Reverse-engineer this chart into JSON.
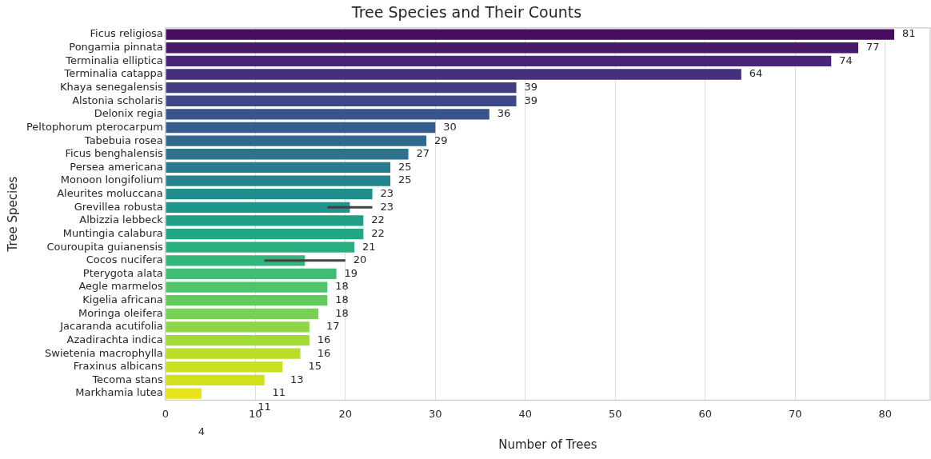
{
  "chart_data": {
    "type": "bar",
    "orientation": "horizontal",
    "title": "Tree Species and Their Counts",
    "xlabel": "Number of Trees",
    "ylabel": "Tree Species",
    "categories": [
      "Ficus religiosa",
      "Pongamia pinnata",
      "Terminalia elliptica",
      "Terminalia catappa",
      "Khaya senegalensis",
      "Alstonia scholaris",
      "Delonix regia",
      "Peltophorum pterocarpum",
      "Tabebuia rosea",
      "Ficus benghalensis",
      "Persea americana",
      "Monoon longifolium",
      "Aleurites moluccana",
      "Grevillea robusta",
      "Albizzia lebbeck",
      "Muntingia calabura",
      "Couroupita guianensis",
      "Cocos nucifera",
      "Pterygota alata",
      "Aegle marmelos",
      "Kigelia africana",
      "Moringa oleifera",
      "Jacaranda acutifolia",
      "Azadirachta indica",
      "Swietenia macrophylla",
      "Fraxinus albicans",
      "Tecoma stans",
      "Markhamia lutea"
    ],
    "values": [
      81,
      77,
      74,
      64,
      39,
      39,
      36,
      30,
      29,
      27,
      25,
      25,
      23,
      20.5,
      22,
      22,
      21,
      15.5,
      19,
      18,
      18,
      17,
      16,
      16,
      15,
      13,
      11,
      4
    ],
    "errors": [
      null,
      null,
      null,
      null,
      null,
      null,
      null,
      null,
      null,
      null,
      null,
      null,
      null,
      [
        18,
        23
      ],
      null,
      null,
      null,
      [
        11,
        20
      ],
      null,
      null,
      null,
      null,
      null,
      null,
      null,
      null,
      null,
      null
    ],
    "colors": [
      "#470d60",
      "#481a6c",
      "#482576",
      "#46307e",
      "#433d84",
      "#3f4788",
      "#3a538b",
      "#355e8d",
      "#31688e",
      "#2c738e",
      "#287c8e",
      "#25848e",
      "#228d8d",
      "#1f968b",
      "#1f9f88",
      "#22a785",
      "#29af7f",
      "#31b57b",
      "#40bd72",
      "#50c46a",
      "#62cb5f",
      "#77d153",
      "#8ed645",
      "#a2da37",
      "#bade28",
      "#c8e020",
      "#d0e11c",
      "#e7e419"
    ],
    "xlim": [
      0,
      85
    ],
    "xticks": [
      0,
      10,
      20,
      30,
      40,
      50,
      60,
      70,
      80
    ],
    "grid": "x",
    "legend": false,
    "annotations": [
      "81",
      "77",
      "74",
      "64",
      "39",
      "39",
      "36",
      "30",
      "29",
      "27",
      "25",
      "25",
      "23",
      "23",
      "22",
      "22",
      "21",
      "20",
      "19",
      "18",
      "18",
      "18",
      "17",
      "16",
      "16",
      "15",
      "13",
      "11",
      "11",
      "4"
    ]
  }
}
